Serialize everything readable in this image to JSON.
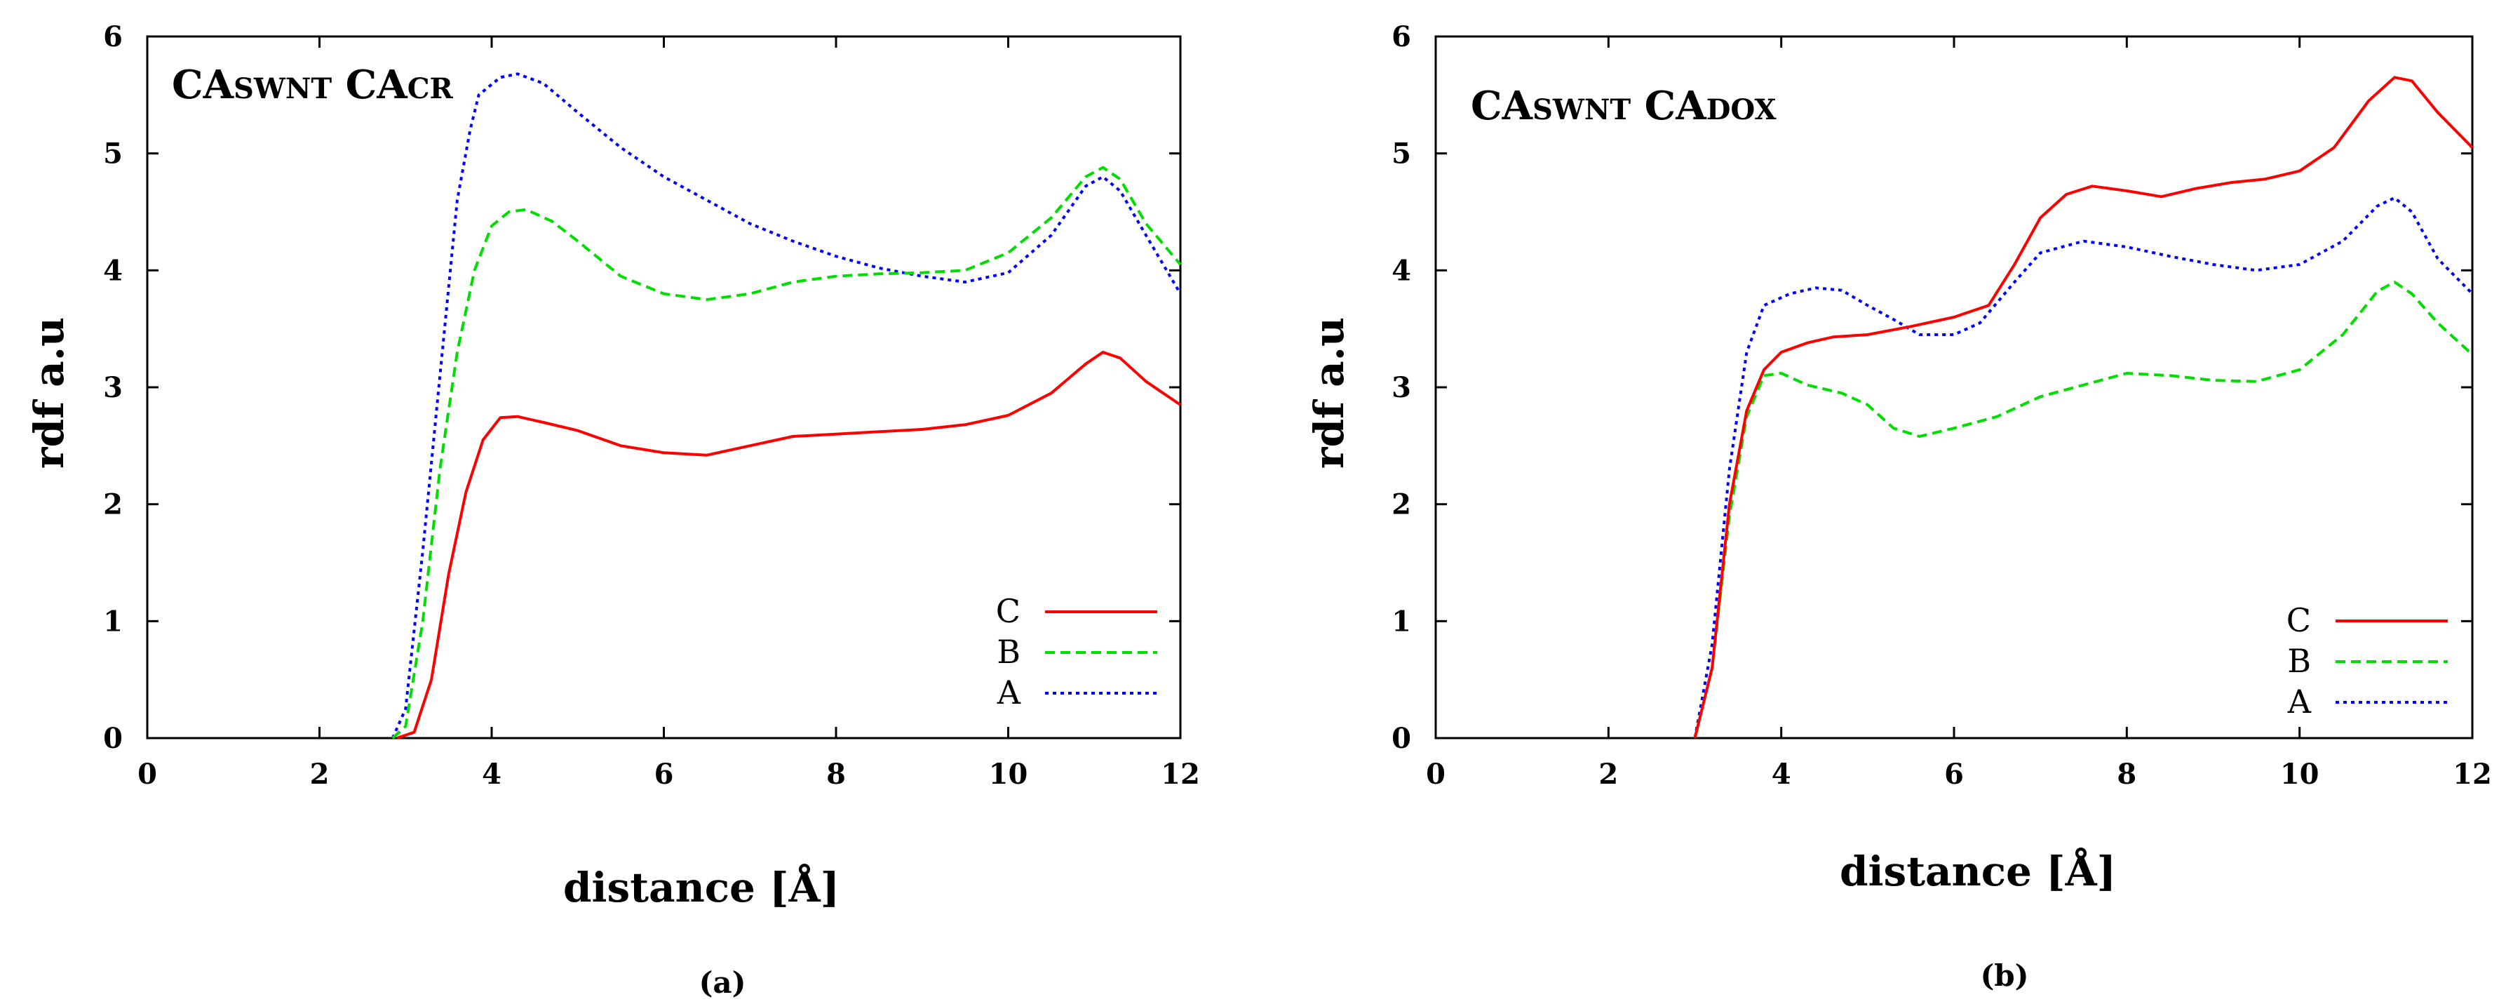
{
  "chart_data": [
    {
      "type": "line",
      "caption": "(a)",
      "title": {
        "p1": "CA",
        "s1": "SWNT",
        "p2": " CA",
        "s2": "CR"
      },
      "xlabel": "distance [Å]",
      "ylabel": "rdf a.u",
      "xlim": [
        0,
        12
      ],
      "ylim": [
        0,
        6
      ],
      "xticks": [
        "0",
        "2",
        "4",
        "6",
        "8",
        "10",
        "12"
      ],
      "yticks": [
        "0",
        "1",
        "2",
        "3",
        "4",
        "5",
        "6"
      ],
      "legend_position": "bottom-right",
      "series": [
        {
          "name": "C",
          "color": "#ff0000",
          "dash": "solid",
          "points": [
            [
              2.9,
              0
            ],
            [
              3.1,
              0.05
            ],
            [
              3.3,
              0.5
            ],
            [
              3.5,
              1.4
            ],
            [
              3.7,
              2.1
            ],
            [
              3.9,
              2.55
            ],
            [
              4.1,
              2.74
            ],
            [
              4.3,
              2.75
            ],
            [
              4.6,
              2.7
            ],
            [
              5.0,
              2.63
            ],
            [
              5.5,
              2.5
            ],
            [
              6.0,
              2.44
            ],
            [
              6.5,
              2.42
            ],
            [
              7.0,
              2.5
            ],
            [
              7.5,
              2.58
            ],
            [
              8.0,
              2.6
            ],
            [
              8.5,
              2.62
            ],
            [
              9.0,
              2.64
            ],
            [
              9.5,
              2.68
            ],
            [
              10.0,
              2.76
            ],
            [
              10.5,
              2.95
            ],
            [
              10.9,
              3.2
            ],
            [
              11.1,
              3.3
            ],
            [
              11.3,
              3.25
            ],
            [
              11.6,
              3.05
            ],
            [
              12.0,
              2.85
            ]
          ]
        },
        {
          "name": "B",
          "color": "#00dd00",
          "dash": "dashed",
          "points": [
            [
              2.85,
              0
            ],
            [
              3.0,
              0.1
            ],
            [
              3.2,
              1.0
            ],
            [
              3.4,
              2.3
            ],
            [
              3.6,
              3.3
            ],
            [
              3.8,
              4.0
            ],
            [
              4.0,
              4.38
            ],
            [
              4.2,
              4.5
            ],
            [
              4.4,
              4.52
            ],
            [
              4.7,
              4.42
            ],
            [
              5.0,
              4.25
            ],
            [
              5.5,
              3.95
            ],
            [
              6.0,
              3.8
            ],
            [
              6.5,
              3.75
            ],
            [
              7.0,
              3.8
            ],
            [
              7.5,
              3.9
            ],
            [
              8.0,
              3.95
            ],
            [
              8.5,
              3.97
            ],
            [
              9.0,
              3.98
            ],
            [
              9.5,
              4.0
            ],
            [
              10.0,
              4.15
            ],
            [
              10.5,
              4.45
            ],
            [
              10.9,
              4.8
            ],
            [
              11.1,
              4.88
            ],
            [
              11.3,
              4.78
            ],
            [
              11.6,
              4.4
            ],
            [
              12.0,
              4.05
            ]
          ]
        },
        {
          "name": "A",
          "color": "#0000ff",
          "dash": "dotted",
          "points": [
            [
              2.85,
              0
            ],
            [
              3.0,
              0.25
            ],
            [
              3.2,
              1.6
            ],
            [
              3.4,
              3.1
            ],
            [
              3.6,
              4.6
            ],
            [
              3.75,
              5.2
            ],
            [
              3.85,
              5.5
            ],
            [
              4.1,
              5.65
            ],
            [
              4.3,
              5.68
            ],
            [
              4.6,
              5.6
            ],
            [
              5.0,
              5.35
            ],
            [
              5.5,
              5.05
            ],
            [
              6.0,
              4.8
            ],
            [
              6.5,
              4.6
            ],
            [
              7.0,
              4.4
            ],
            [
              7.5,
              4.25
            ],
            [
              8.0,
              4.12
            ],
            [
              8.5,
              4.02
            ],
            [
              9.0,
              3.95
            ],
            [
              9.5,
              3.9
            ],
            [
              10.0,
              3.98
            ],
            [
              10.5,
              4.3
            ],
            [
              10.9,
              4.72
            ],
            [
              11.1,
              4.8
            ],
            [
              11.3,
              4.68
            ],
            [
              11.6,
              4.3
            ],
            [
              12.0,
              3.8
            ]
          ]
        }
      ]
    },
    {
      "type": "line",
      "caption": "(b)",
      "title": {
        "p1": "CA",
        "s1": "SWNT",
        "p2": " CA",
        "s2": "DOX"
      },
      "xlabel": "distance [Å]",
      "ylabel": "rdf a.u",
      "xlim": [
        0,
        12
      ],
      "ylim": [
        0,
        6
      ],
      "xticks": [
        "0",
        "2",
        "4",
        "6",
        "8",
        "10",
        "12"
      ],
      "yticks": [
        "0",
        "1",
        "2",
        "3",
        "4",
        "5",
        "6"
      ],
      "legend_position": "bottom-right",
      "series": [
        {
          "name": "C",
          "color": "#ff0000",
          "dash": "solid",
          "points": [
            [
              3.0,
              0
            ],
            [
              3.2,
              0.6
            ],
            [
              3.4,
              2.0
            ],
            [
              3.6,
              2.8
            ],
            [
              3.8,
              3.15
            ],
            [
              4.0,
              3.3
            ],
            [
              4.3,
              3.38
            ],
            [
              4.6,
              3.43
            ],
            [
              5.0,
              3.45
            ],
            [
              5.5,
              3.52
            ],
            [
              6.0,
              3.6
            ],
            [
              6.4,
              3.7
            ],
            [
              6.7,
              4.05
            ],
            [
              7.0,
              4.45
            ],
            [
              7.3,
              4.65
            ],
            [
              7.6,
              4.72
            ],
            [
              8.0,
              4.68
            ],
            [
              8.4,
              4.63
            ],
            [
              8.8,
              4.7
            ],
            [
              9.2,
              4.75
            ],
            [
              9.6,
              4.78
            ],
            [
              10.0,
              4.85
            ],
            [
              10.4,
              5.05
            ],
            [
              10.8,
              5.45
            ],
            [
              11.1,
              5.65
            ],
            [
              11.3,
              5.62
            ],
            [
              11.6,
              5.35
            ],
            [
              12.0,
              5.05
            ]
          ]
        },
        {
          "name": "B",
          "color": "#00dd00",
          "dash": "dashed",
          "points": [
            [
              3.0,
              0
            ],
            [
              3.2,
              0.6
            ],
            [
              3.4,
              1.9
            ],
            [
              3.6,
              2.75
            ],
            [
              3.8,
              3.1
            ],
            [
              4.0,
              3.12
            ],
            [
              4.3,
              3.02
            ],
            [
              4.7,
              2.95
            ],
            [
              5.0,
              2.85
            ],
            [
              5.3,
              2.65
            ],
            [
              5.6,
              2.58
            ],
            [
              6.0,
              2.65
            ],
            [
              6.5,
              2.75
            ],
            [
              7.0,
              2.92
            ],
            [
              7.5,
              3.02
            ],
            [
              8.0,
              3.12
            ],
            [
              8.5,
              3.1
            ],
            [
              9.0,
              3.06
            ],
            [
              9.5,
              3.05
            ],
            [
              10.0,
              3.15
            ],
            [
              10.5,
              3.45
            ],
            [
              10.9,
              3.82
            ],
            [
              11.1,
              3.9
            ],
            [
              11.3,
              3.8
            ],
            [
              11.6,
              3.55
            ],
            [
              12.0,
              3.28
            ]
          ]
        },
        {
          "name": "A",
          "color": "#0000ff",
          "dash": "dotted",
          "points": [
            [
              3.0,
              0
            ],
            [
              3.2,
              0.8
            ],
            [
              3.4,
              2.3
            ],
            [
              3.6,
              3.3
            ],
            [
              3.8,
              3.7
            ],
            [
              4.1,
              3.8
            ],
            [
              4.4,
              3.85
            ],
            [
              4.7,
              3.83
            ],
            [
              5.0,
              3.7
            ],
            [
              5.3,
              3.58
            ],
            [
              5.6,
              3.45
            ],
            [
              6.0,
              3.45
            ],
            [
              6.3,
              3.55
            ],
            [
              6.7,
              3.9
            ],
            [
              7.0,
              4.15
            ],
            [
              7.5,
              4.25
            ],
            [
              8.0,
              4.2
            ],
            [
              8.5,
              4.12
            ],
            [
              9.0,
              4.05
            ],
            [
              9.5,
              4.0
            ],
            [
              10.0,
              4.05
            ],
            [
              10.5,
              4.25
            ],
            [
              10.9,
              4.55
            ],
            [
              11.1,
              4.62
            ],
            [
              11.3,
              4.5
            ],
            [
              11.6,
              4.1
            ],
            [
              12.0,
              3.8
            ]
          ]
        }
      ]
    }
  ]
}
